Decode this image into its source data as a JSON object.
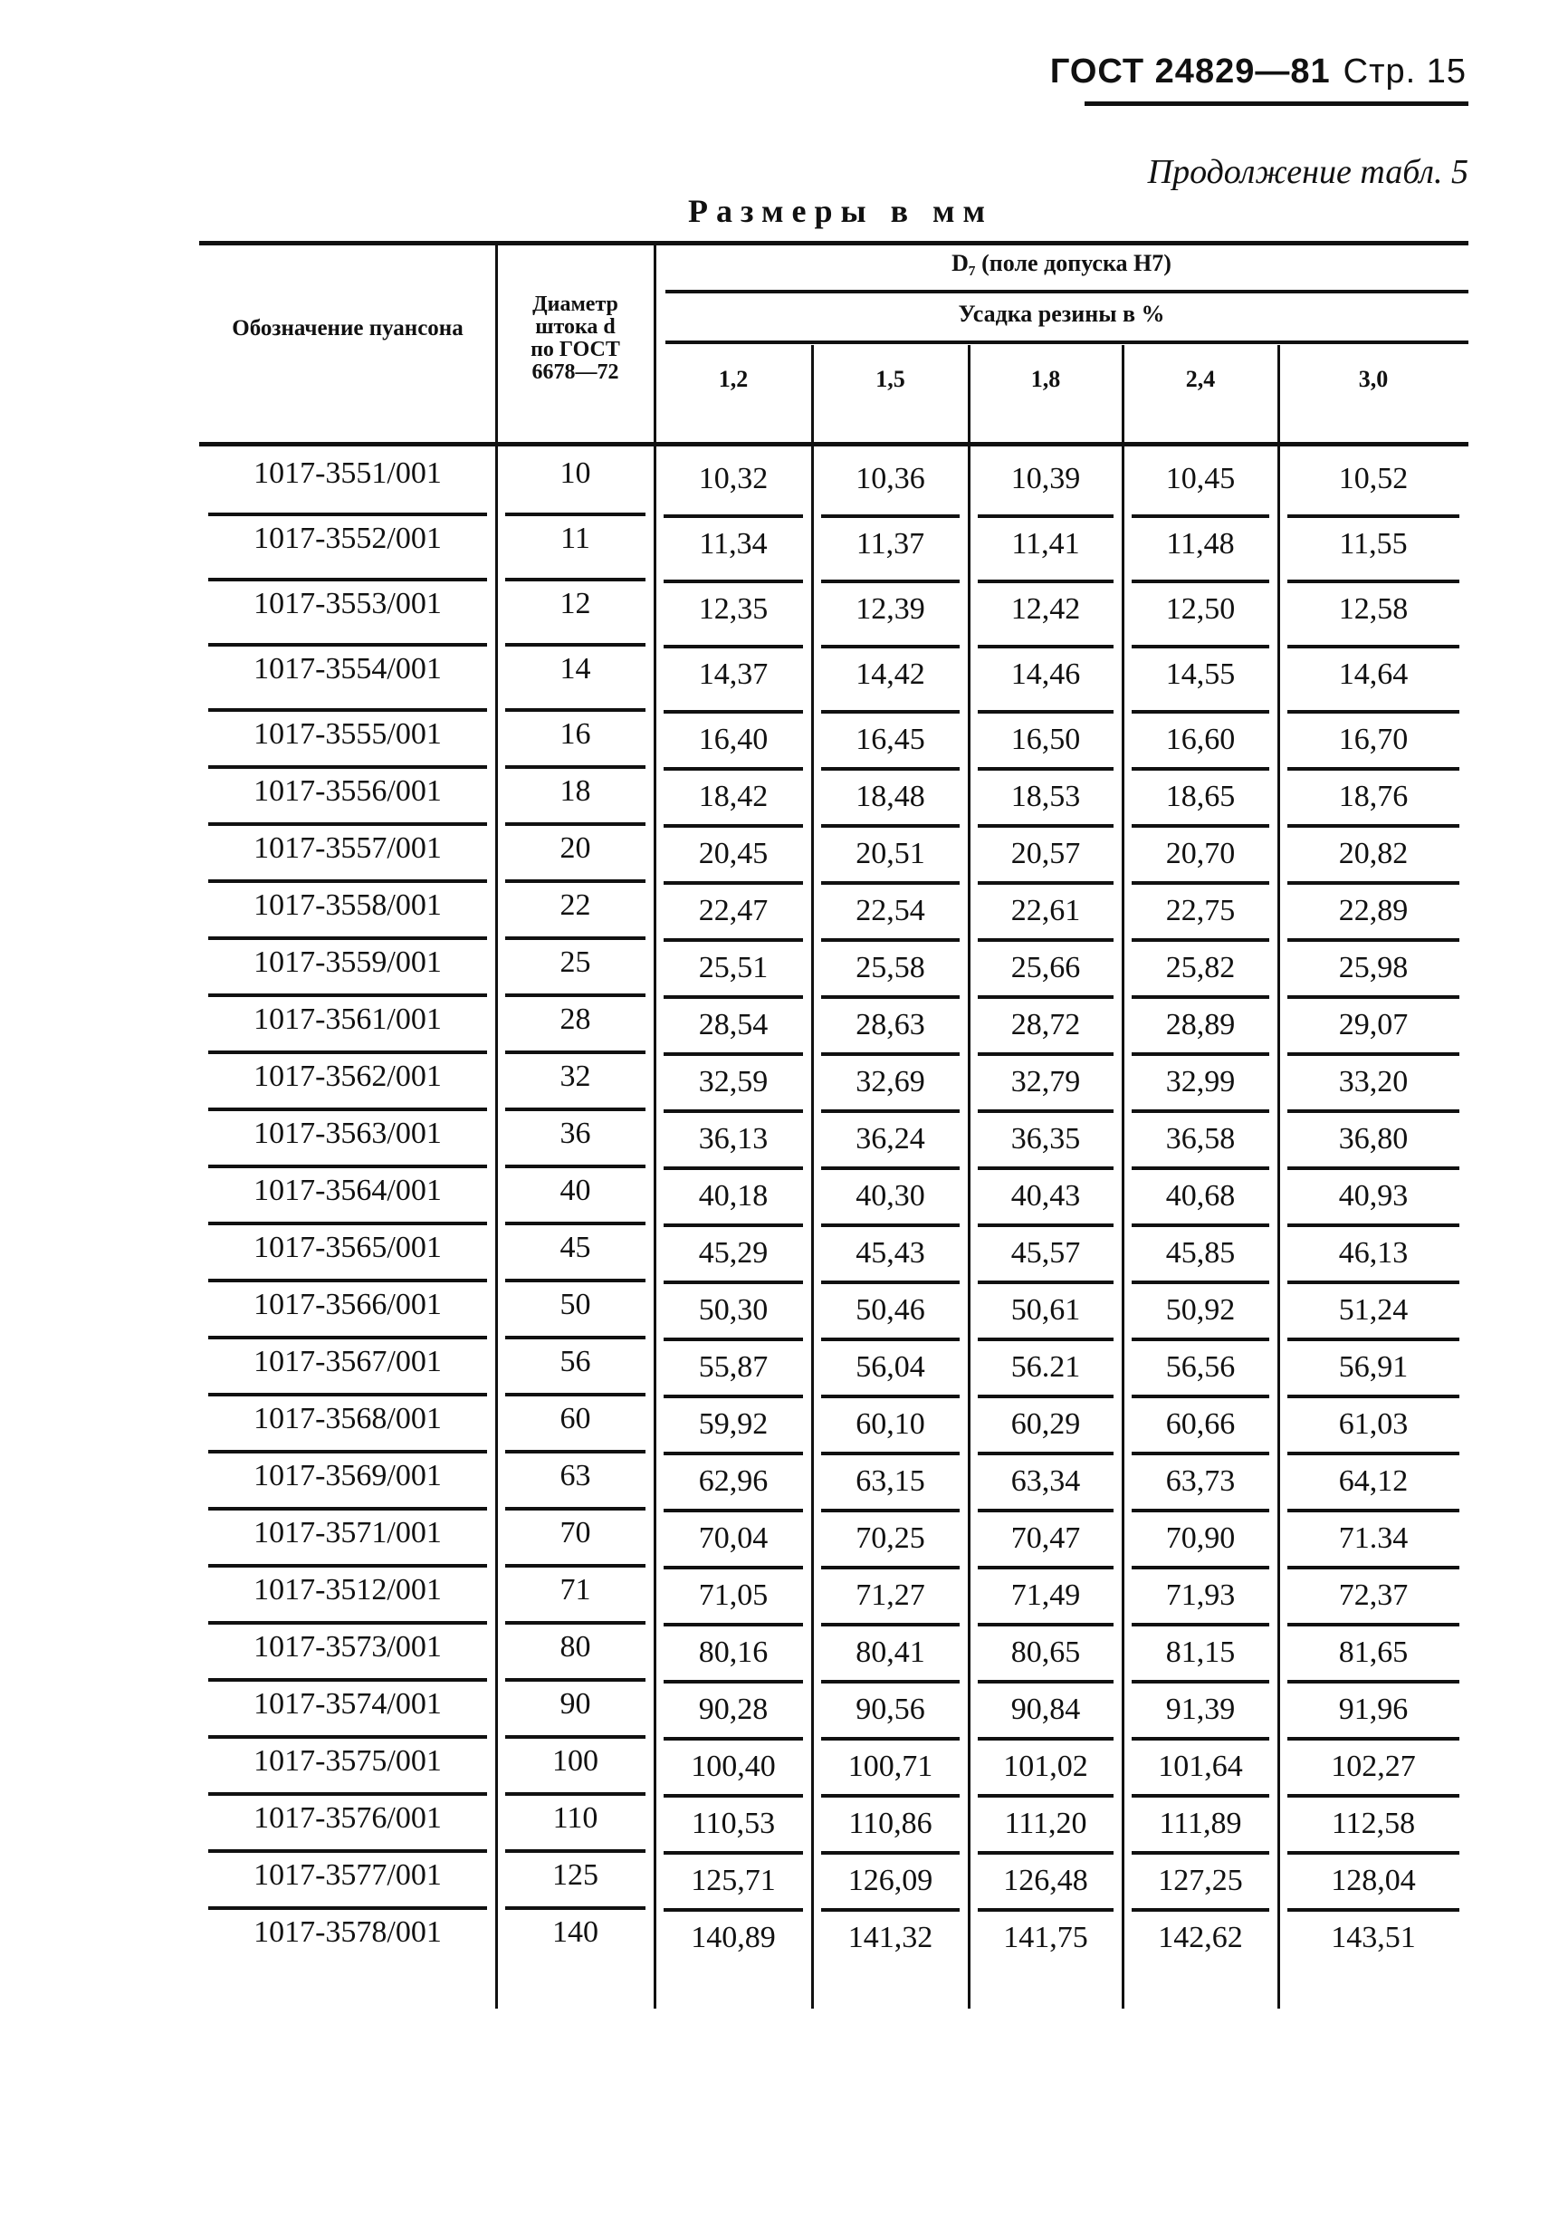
{
  "header": {
    "standard": "ГОСТ 24829—81",
    "page": "Стр. 15"
  },
  "continuation": "Продолжение табл. 5",
  "units": "Размеры в мм",
  "table": {
    "col_designation": "Обозначение пуансона",
    "col_diameter": [
      "Диаметр",
      "штока d",
      "по ГОСТ",
      "6678—72"
    ],
    "group_header": "D₇ (поле допуска H7)",
    "subgroup_header": "Усадка резины в %",
    "shrinkage": [
      "1,2",
      "1,5",
      "1,8",
      "2,4",
      "3,0"
    ],
    "rows": [
      [
        "1017-3551/001",
        "10",
        "10,32",
        "10,36",
        "10,39",
        "10,45",
        "10,52"
      ],
      [
        "1017-3552/001",
        "11",
        "11,34",
        "11,37",
        "11,41",
        "11,48",
        "11,55"
      ],
      [
        "1017-3553/001",
        "12",
        "12,35",
        "12,39",
        "12,42",
        "12,50",
        "12,58"
      ],
      [
        "1017-3554/001",
        "14",
        "14,37",
        "14,42",
        "14,46",
        "14,55",
        "14,64"
      ],
      [
        "1017-3555/001",
        "16",
        "16,40",
        "16,45",
        "16,50",
        "16,60",
        "16,70"
      ],
      [
        "1017-3556/001",
        "18",
        "18,42",
        "18,48",
        "18,53",
        "18,65",
        "18,76"
      ],
      [
        "1017-3557/001",
        "20",
        "20,45",
        "20,51",
        "20,57",
        "20,70",
        "20,82"
      ],
      [
        "1017-3558/001",
        "22",
        "22,47",
        "22,54",
        "22,61",
        "22,75",
        "22,89"
      ],
      [
        "1017-3559/001",
        "25",
        "25,51",
        "25,58",
        "25,66",
        "25,82",
        "25,98"
      ],
      [
        "1017-3561/001",
        "28",
        "28,54",
        "28,63",
        "28,72",
        "28,89",
        "29,07"
      ],
      [
        "1017-3562/001",
        "32",
        "32,59",
        "32,69",
        "32,79",
        "32,99",
        "33,20"
      ],
      [
        "1017-3563/001",
        "36",
        "36,13",
        "36,24",
        "36,35",
        "36,58",
        "36,80"
      ],
      [
        "1017-3564/001",
        "40",
        "40,18",
        "40,30",
        "40,43",
        "40,68",
        "40,93"
      ],
      [
        "1017-3565/001",
        "45",
        "45,29",
        "45,43",
        "45,57",
        "45,85",
        "46,13"
      ],
      [
        "1017-3566/001",
        "50",
        "50,30",
        "50,46",
        "50,61",
        "50,92",
        "51,24"
      ],
      [
        "1017-3567/001",
        "56",
        "55,87",
        "56,04",
        "56.21",
        "56,56",
        "56,91"
      ],
      [
        "1017-3568/001",
        "60",
        "59,92",
        "60,10",
        "60,29",
        "60,66",
        "61,03"
      ],
      [
        "1017-3569/001",
        "63",
        "62,96",
        "63,15",
        "63,34",
        "63,73",
        "64,12"
      ],
      [
        "1017-3571/001",
        "70",
        "70,04",
        "70,25",
        "70,47",
        "70,90",
        "71.34"
      ],
      [
        "1017-3512/001",
        "71",
        "71,05",
        "71,27",
        "71,49",
        "71,93",
        "72,37"
      ],
      [
        "1017-3573/001",
        "80",
        "80,16",
        "80,41",
        "80,65",
        "81,15",
        "81,65"
      ],
      [
        "1017-3574/001",
        "90",
        "90,28",
        "90,56",
        "90,84",
        "91,39",
        "91,96"
      ],
      [
        "1017-3575/001",
        "100",
        "100,40",
        "100,71",
        "101,02",
        "101,64",
        "102,27"
      ],
      [
        "1017-3576/001",
        "110",
        "110,53",
        "110,86",
        "111,20",
        "111,89",
        "112,58"
      ],
      [
        "1017-3577/001",
        "125",
        "125,71",
        "126,09",
        "126,48",
        "127,25",
        "128,04"
      ],
      [
        "1017-3578/001",
        "140",
        "140,89",
        "141,32",
        "141,75",
        "142,62",
        "143,51"
      ]
    ]
  }
}
